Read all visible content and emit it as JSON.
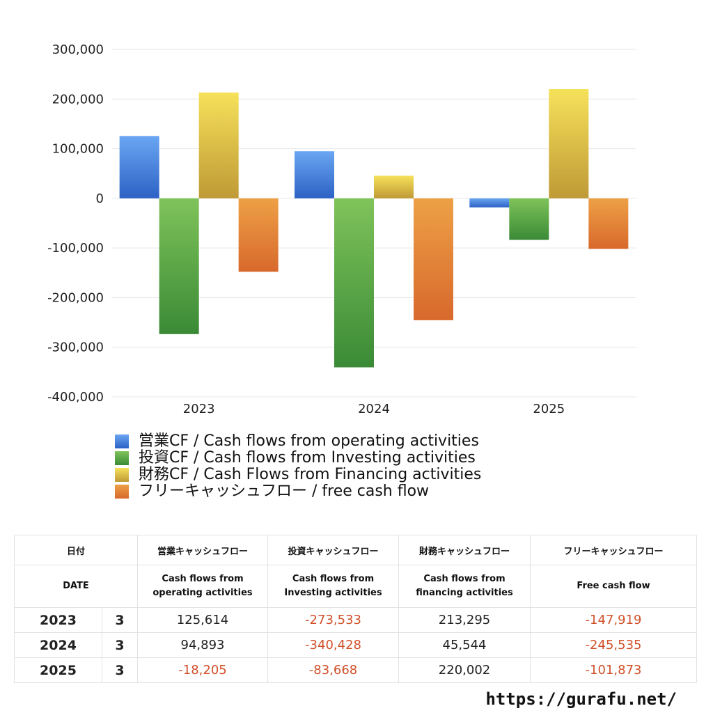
{
  "chart_data": {
    "type": "bar",
    "categories": [
      "2023",
      "2024",
      "2025"
    ],
    "series": [
      {
        "name": "営業CF / Cash flows from operating activities",
        "values": [
          125614,
          94893,
          -18205
        ],
        "color": "#3a78d8"
      },
      {
        "name": "投資CF / Cash flows from Investing activities",
        "values": [
          -273533,
          -340428,
          -83668
        ],
        "color": "#4f9e3f"
      },
      {
        "name": "財務CF / Cash Flows from Financing activities",
        "values": [
          213295,
          45544,
          220002
        ],
        "color": "#d8c03a"
      },
      {
        "name": "フリーキャッシュフロー / free cash flow",
        "values": [
          -147919,
          -245535,
          -101873
        ],
        "color": "#e07f38"
      }
    ],
    "ylim": [
      -400000,
      300000
    ],
    "yticks": [
      "300,000",
      "200,000",
      "100,000",
      "0",
      "-100,000",
      "-200,000",
      "-300,000",
      "-400,000"
    ],
    "ytick_values": [
      300000,
      200000,
      100000,
      0,
      -100000,
      -200000,
      -300000,
      -400000
    ],
    "grid": true,
    "legend_position": "bottom"
  },
  "table": {
    "header": {
      "date_jp": "日付",
      "date_en": "DATE",
      "cols": [
        {
          "jp": "営業キャッシュフロー",
          "en1": "Cash flows from",
          "en2": "operating activities"
        },
        {
          "jp": "投資キャッシュフロー",
          "en1": "Cash flows from",
          "en2": "Investing activities"
        },
        {
          "jp": "財務キャッシュフロー",
          "en1": "Cash flows from",
          "en2": "financing activities"
        },
        {
          "jp": "フリーキャッシュフロー",
          "en1": "Free cash flow",
          "en2": ""
        }
      ]
    },
    "rows": [
      {
        "year": "2023",
        "month": "3",
        "values": [
          "125,614",
          "-273,533",
          "213,295",
          "-147,919"
        ]
      },
      {
        "year": "2024",
        "month": "3",
        "values": [
          "94,893",
          "-340,428",
          "45,544",
          "-245,535"
        ]
      },
      {
        "year": "2025",
        "month": "3",
        "values": [
          "-18,205",
          "-83,668",
          "220,002",
          "-101,873"
        ]
      }
    ]
  },
  "footer": {
    "url": "https://gurafu.net/"
  }
}
